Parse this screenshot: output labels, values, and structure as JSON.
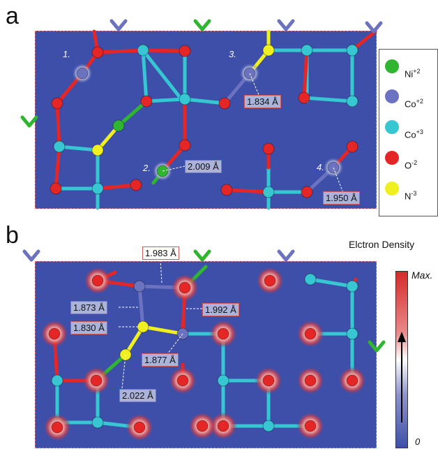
{
  "panels": [
    {
      "letter": "a"
    },
    {
      "letter": "b"
    }
  ],
  "legend": [
    {
      "label": "Ni",
      "charge": "+2",
      "color": "#2fb52f"
    },
    {
      "label": "Co",
      "charge": "+2",
      "color": "#6b72c0"
    },
    {
      "label": "Co",
      "charge": "+3",
      "color": "#36c7d3"
    },
    {
      "label": "O",
      "charge": "-2",
      "color": "#e52626"
    },
    {
      "label": "N",
      "charge": "-3",
      "color": "#f0f020"
    }
  ],
  "site_numbers": [
    "1.",
    "2.",
    "3.",
    "4."
  ],
  "bond_labels_a": [
    "1.834 Å",
    "2.009 Å",
    "1.950 Å"
  ],
  "bond_labels_b": [
    "1.983 Å",
    "1.873 Å",
    "1.992 Å",
    "1.830 Å",
    "1.877 Å",
    "2.022 Å"
  ],
  "colorbar": {
    "title": "Elctron Density",
    "max_label": "Max.",
    "min_label": "0"
  }
}
